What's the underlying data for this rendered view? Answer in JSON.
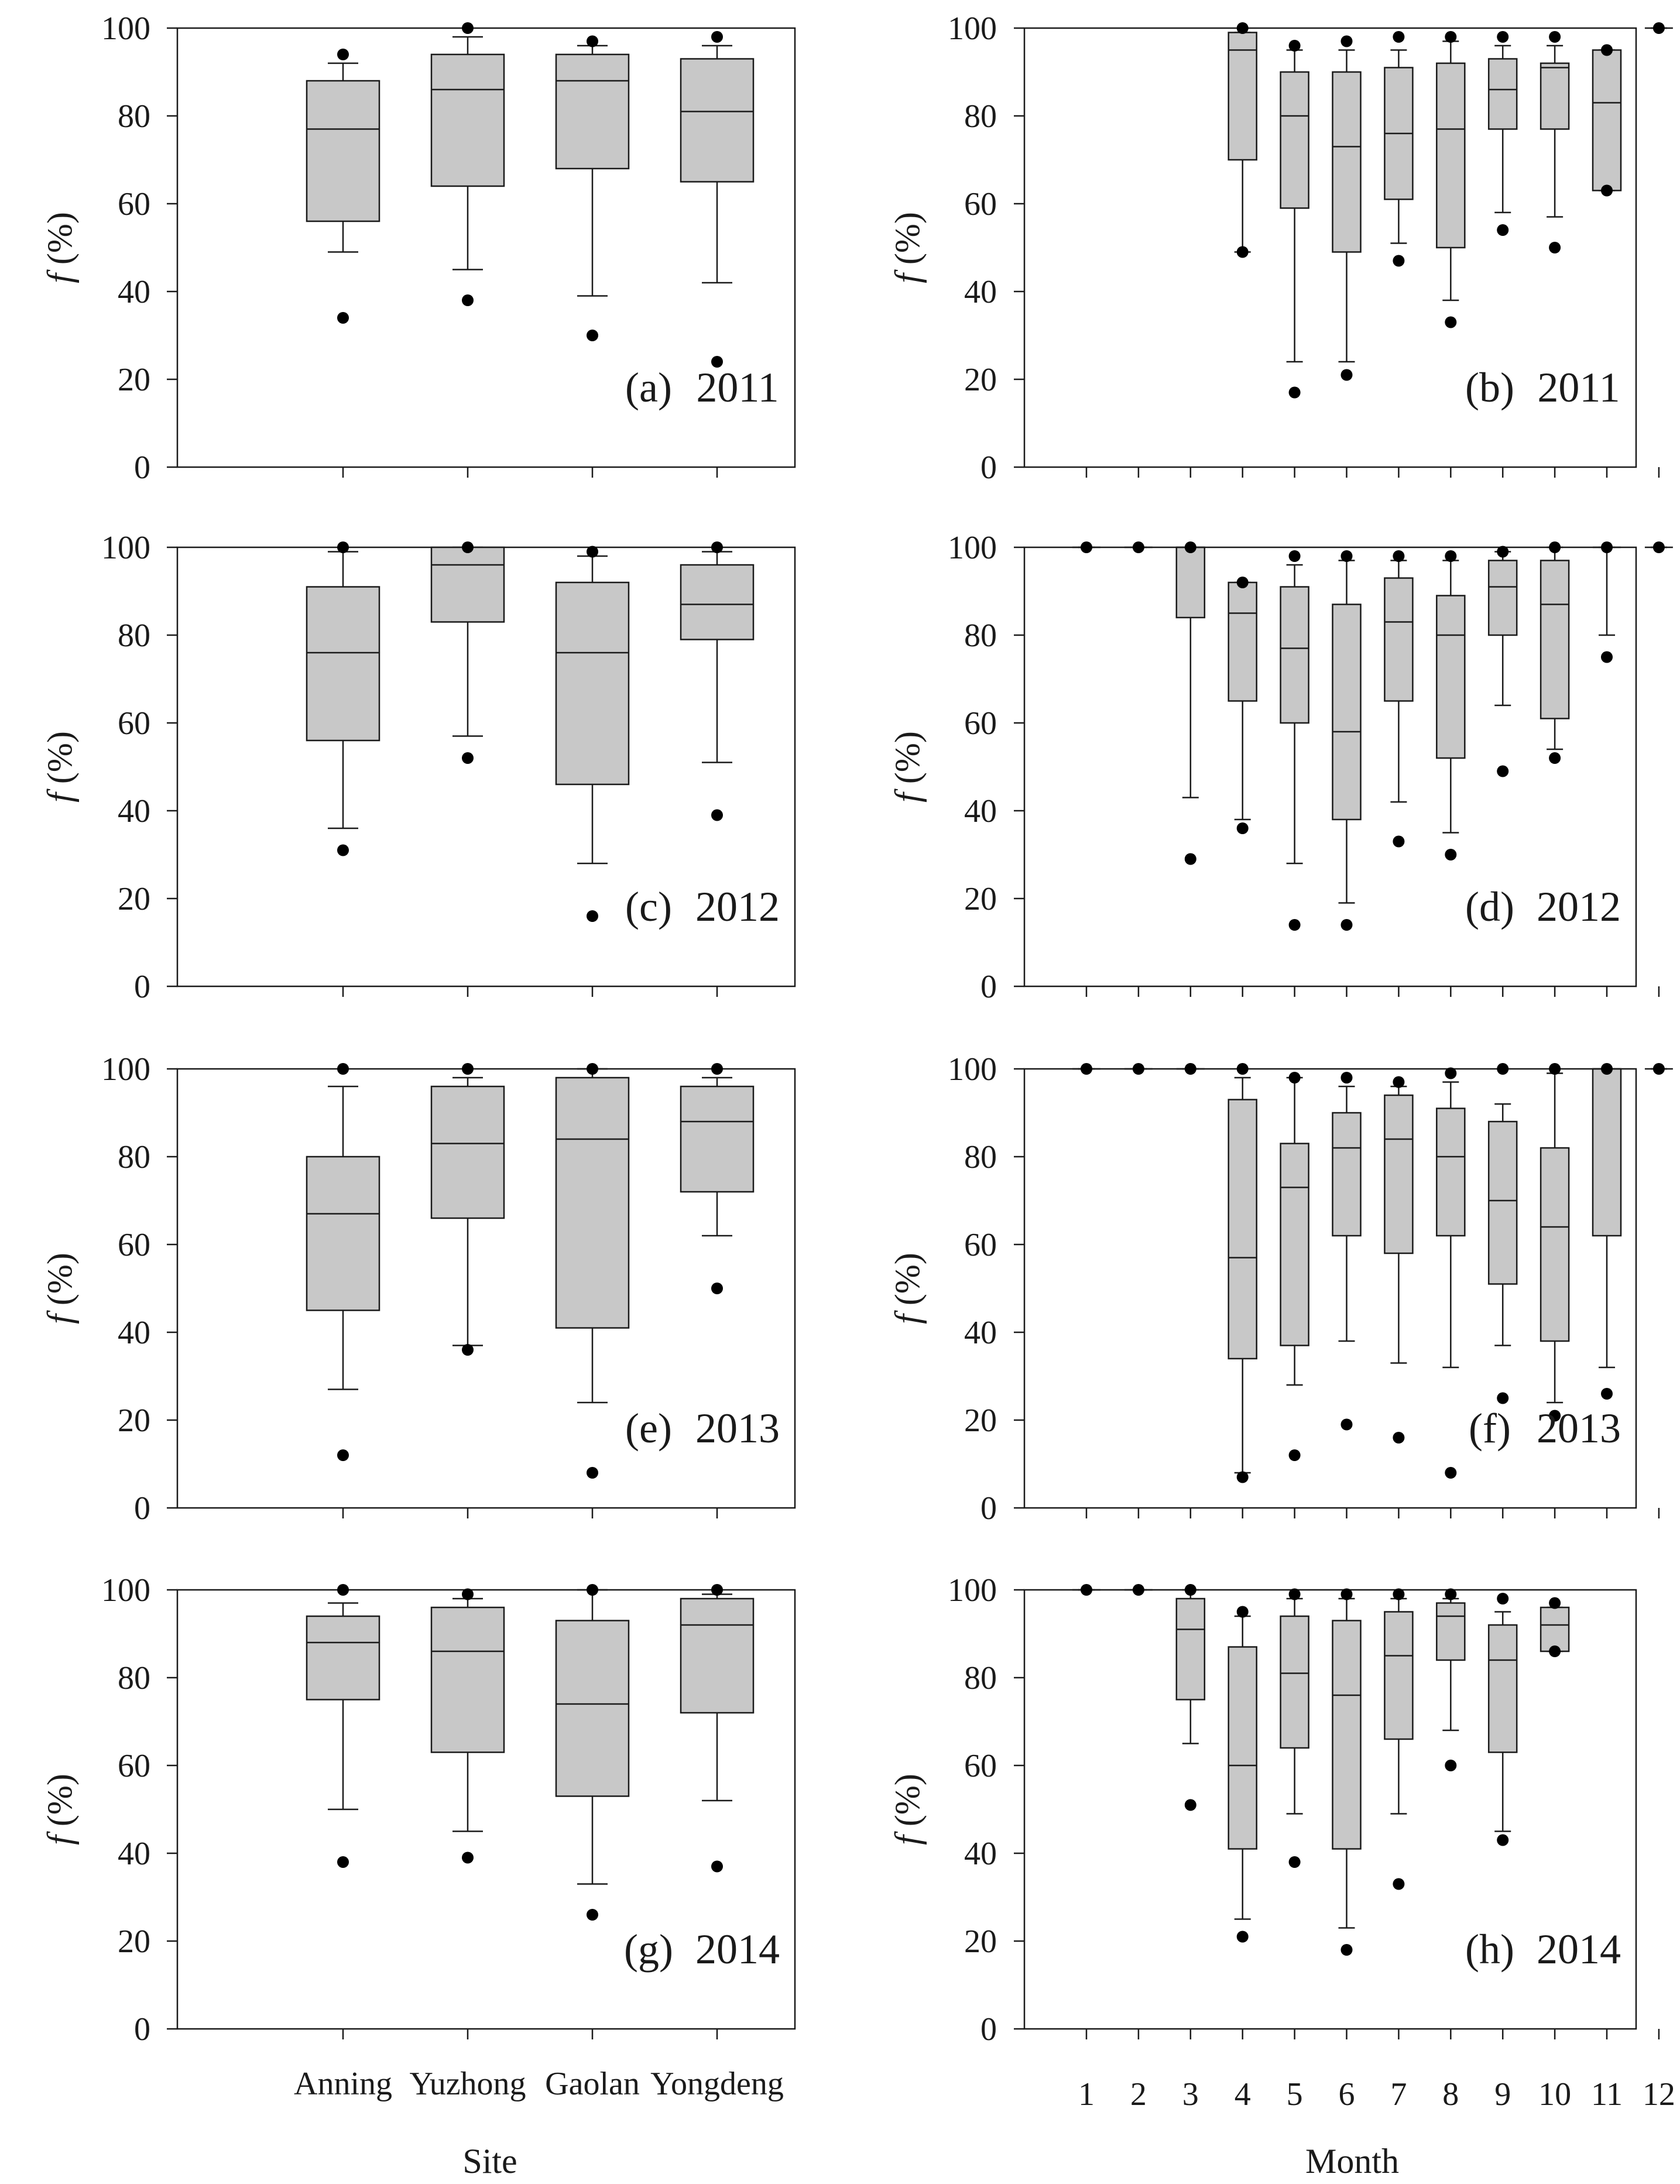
{
  "figure": {
    "ylabel_symbol": "f",
    "ylabel_unit": "(%)",
    "left_xlabel": "Site",
    "right_xlabel": "Month",
    "site_names": [
      "Anning",
      "Yuzhong",
      "Gaolan",
      "Yongdeng"
    ],
    "month_names": [
      "1",
      "2",
      "3",
      "4",
      "5",
      "6",
      "7",
      "8",
      "9",
      "10",
      "11",
      "12"
    ],
    "y_ticks": [
      "0",
      "20",
      "40",
      "60",
      "80",
      "100"
    ],
    "box_color": "#c8c8c8",
    "line_color": "#1a1a1a"
  },
  "chart_data": [
    {
      "type": "box",
      "panel_label": "(a)",
      "year": "2011",
      "ylim": [
        0,
        100
      ],
      "series": [
        {
          "category": "Anning",
          "whisker_low": 49,
          "q1": 56,
          "median": 77,
          "q3": 88,
          "whisker_high": 92,
          "outliers": [
            34,
            94
          ]
        },
        {
          "category": "Yuzhong",
          "whisker_low": 45,
          "q1": 64,
          "median": 86,
          "q3": 94,
          "whisker_high": 98,
          "outliers": [
            38,
            100
          ]
        },
        {
          "category": "Gaolan",
          "whisker_low": 39,
          "q1": 68,
          "median": 88,
          "q3": 94,
          "whisker_high": 96,
          "outliers": [
            30,
            97
          ]
        },
        {
          "category": "Yongdeng",
          "whisker_low": 42,
          "q1": 65,
          "median": 81,
          "q3": 93,
          "whisker_high": 96,
          "outliers": [
            24,
            98
          ]
        }
      ]
    },
    {
      "type": "box",
      "panel_label": "(b)",
      "year": "2011",
      "ylim": [
        0,
        100
      ],
      "series": [
        {
          "category": "4",
          "whisker_low": 49,
          "q1": 70,
          "median": 95,
          "q3": 99,
          "whisker_high": 99,
          "outliers": [
            49,
            100
          ]
        },
        {
          "category": "5",
          "whisker_low": 24,
          "q1": 59,
          "median": 80,
          "q3": 90,
          "whisker_high": 95,
          "outliers": [
            17,
            96
          ]
        },
        {
          "category": "6",
          "whisker_low": 24,
          "q1": 49,
          "median": 73,
          "q3": 90,
          "whisker_high": 95,
          "outliers": [
            21,
            97
          ]
        },
        {
          "category": "7",
          "whisker_low": 51,
          "q1": 61,
          "median": 76,
          "q3": 91,
          "whisker_high": 95,
          "outliers": [
            47,
            98
          ]
        },
        {
          "category": "8",
          "whisker_low": 38,
          "q1": 50,
          "median": 77,
          "q3": 92,
          "whisker_high": 97,
          "outliers": [
            33,
            98
          ]
        },
        {
          "category": "9",
          "whisker_low": 58,
          "q1": 77,
          "median": 86,
          "q3": 93,
          "whisker_high": 96,
          "outliers": [
            54,
            98
          ]
        },
        {
          "category": "10",
          "whisker_low": 57,
          "q1": 77,
          "median": 91,
          "q3": 92,
          "whisker_high": 96,
          "outliers": [
            50,
            98
          ]
        },
        {
          "category": "11",
          "whisker_low": 63,
          "q1": 63,
          "median": 83,
          "q3": 95,
          "whisker_high": 95,
          "outliers": [
            63,
            95
          ]
        },
        {
          "category": "12",
          "whisker_low": 100,
          "q1": 100,
          "median": 100,
          "q3": 100,
          "whisker_high": 100,
          "outliers": [
            100
          ]
        }
      ]
    },
    {
      "type": "box",
      "panel_label": "(c)",
      "year": "2012",
      "ylim": [
        0,
        100
      ],
      "series": [
        {
          "category": "Anning",
          "whisker_low": 36,
          "q1": 56,
          "median": 76,
          "q3": 91,
          "whisker_high": 99,
          "outliers": [
            31,
            100
          ]
        },
        {
          "category": "Yuzhong",
          "whisker_low": 57,
          "q1": 83,
          "median": 96,
          "q3": 100,
          "whisker_high": 100,
          "outliers": [
            52,
            100
          ]
        },
        {
          "category": "Gaolan",
          "whisker_low": 28,
          "q1": 46,
          "median": 76,
          "q3": 92,
          "whisker_high": 98,
          "outliers": [
            16,
            99
          ]
        },
        {
          "category": "Yongdeng",
          "whisker_low": 51,
          "q1": 79,
          "median": 87,
          "q3": 96,
          "whisker_high": 99,
          "outliers": [
            39,
            100
          ]
        }
      ]
    },
    {
      "type": "box",
      "panel_label": "(d)",
      "year": "2012",
      "ylim": [
        0,
        100
      ],
      "series": [
        {
          "category": "1",
          "whisker_low": 100,
          "q1": 100,
          "median": 100,
          "q3": 100,
          "whisker_high": 100,
          "outliers": [
            100
          ]
        },
        {
          "category": "2",
          "whisker_low": 100,
          "q1": 100,
          "median": 100,
          "q3": 100,
          "whisker_high": 100,
          "outliers": [
            100
          ]
        },
        {
          "category": "3",
          "whisker_low": 43,
          "q1": 84,
          "median": 100,
          "q3": 100,
          "whisker_high": 100,
          "outliers": [
            29,
            100
          ]
        },
        {
          "category": "4",
          "whisker_low": 38,
          "q1": 65,
          "median": 85,
          "q3": 92,
          "whisker_high": 92,
          "outliers": [
            36,
            92
          ]
        },
        {
          "category": "5",
          "whisker_low": 28,
          "q1": 60,
          "median": 77,
          "q3": 91,
          "whisker_high": 96,
          "outliers": [
            14,
            98
          ]
        },
        {
          "category": "6",
          "whisker_low": 19,
          "q1": 38,
          "median": 58,
          "q3": 87,
          "whisker_high": 97,
          "outliers": [
            14,
            98
          ]
        },
        {
          "category": "7",
          "whisker_low": 42,
          "q1": 65,
          "median": 83,
          "q3": 93,
          "whisker_high": 97,
          "outliers": [
            33,
            98
          ]
        },
        {
          "category": "8",
          "whisker_low": 35,
          "q1": 52,
          "median": 80,
          "q3": 89,
          "whisker_high": 97,
          "outliers": [
            30,
            98
          ]
        },
        {
          "category": "9",
          "whisker_low": 64,
          "q1": 80,
          "median": 91,
          "q3": 97,
          "whisker_high": 99,
          "outliers": [
            49,
            99
          ]
        },
        {
          "category": "10",
          "whisker_low": 54,
          "q1": 61,
          "median": 87,
          "q3": 97,
          "whisker_high": 100,
          "outliers": [
            52,
            100
          ]
        },
        {
          "category": "11",
          "whisker_low": 80,
          "q1": 100,
          "median": 100,
          "q3": 100,
          "whisker_high": 100,
          "outliers": [
            75,
            100
          ]
        },
        {
          "category": "12",
          "whisker_low": 100,
          "q1": 100,
          "median": 100,
          "q3": 100,
          "whisker_high": 100,
          "outliers": [
            100
          ]
        }
      ]
    },
    {
      "type": "box",
      "panel_label": "(e)",
      "year": "2013",
      "ylim": [
        0,
        100
      ],
      "series": [
        {
          "category": "Anning",
          "whisker_low": 27,
          "q1": 45,
          "median": 67,
          "q3": 80,
          "whisker_high": 96,
          "outliers": [
            12,
            100
          ]
        },
        {
          "category": "Yuzhong",
          "whisker_low": 37,
          "q1": 66,
          "median": 83,
          "q3": 96,
          "whisker_high": 98,
          "outliers": [
            36,
            100
          ]
        },
        {
          "category": "Gaolan",
          "whisker_low": 24,
          "q1": 41,
          "median": 84,
          "q3": 98,
          "whisker_high": 100,
          "outliers": [
            8,
            100
          ]
        },
        {
          "category": "Yongdeng",
          "whisker_low": 62,
          "q1": 72,
          "median": 88,
          "q3": 96,
          "whisker_high": 98,
          "outliers": [
            50,
            100
          ]
        }
      ]
    },
    {
      "type": "box",
      "panel_label": "(f)",
      "year": "2013",
      "ylim": [
        0,
        100
      ],
      "series": [
        {
          "category": "1",
          "whisker_low": 100,
          "q1": 100,
          "median": 100,
          "q3": 100,
          "whisker_high": 100,
          "outliers": [
            100
          ]
        },
        {
          "category": "2",
          "whisker_low": 100,
          "q1": 100,
          "median": 100,
          "q3": 100,
          "whisker_high": 100,
          "outliers": [
            100
          ]
        },
        {
          "category": "3",
          "whisker_low": 100,
          "q1": 100,
          "median": 100,
          "q3": 100,
          "whisker_high": 100,
          "outliers": [
            100
          ]
        },
        {
          "category": "4",
          "whisker_low": 8,
          "q1": 34,
          "median": 57,
          "q3": 93,
          "whisker_high": 98,
          "outliers": [
            7,
            100
          ]
        },
        {
          "category": "5",
          "whisker_low": 28,
          "q1": 37,
          "median": 73,
          "q3": 83,
          "whisker_high": 98,
          "outliers": [
            12,
            98
          ]
        },
        {
          "category": "6",
          "whisker_low": 38,
          "q1": 62,
          "median": 82,
          "q3": 90,
          "whisker_high": 96,
          "outliers": [
            19,
            98
          ]
        },
        {
          "category": "7",
          "whisker_low": 33,
          "q1": 58,
          "median": 84,
          "q3": 94,
          "whisker_high": 96,
          "outliers": [
            16,
            97
          ]
        },
        {
          "category": "8",
          "whisker_low": 32,
          "q1": 62,
          "median": 80,
          "q3": 91,
          "whisker_high": 97,
          "outliers": [
            8,
            99
          ]
        },
        {
          "category": "9",
          "whisker_low": 37,
          "q1": 51,
          "median": 70,
          "q3": 88,
          "whisker_high": 92,
          "outliers": [
            25,
            100
          ]
        },
        {
          "category": "10",
          "whisker_low": 24,
          "q1": 38,
          "median": 64,
          "q3": 82,
          "whisker_high": 99,
          "outliers": [
            21,
            100
          ]
        },
        {
          "category": "11",
          "whisker_low": 32,
          "q1": 62,
          "median": 100,
          "q3": 100,
          "whisker_high": 100,
          "outliers": [
            26,
            100
          ]
        },
        {
          "category": "12",
          "whisker_low": 100,
          "q1": 100,
          "median": 100,
          "q3": 100,
          "whisker_high": 100,
          "outliers": [
            100
          ]
        }
      ]
    },
    {
      "type": "box",
      "panel_label": "(g)",
      "year": "2014",
      "ylim": [
        0,
        100
      ],
      "series": [
        {
          "category": "Anning",
          "whisker_low": 50,
          "q1": 75,
          "median": 88,
          "q3": 94,
          "whisker_high": 97,
          "outliers": [
            38,
            100
          ]
        },
        {
          "category": "Yuzhong",
          "whisker_low": 45,
          "q1": 63,
          "median": 86,
          "q3": 96,
          "whisker_high": 98,
          "outliers": [
            39,
            99
          ]
        },
        {
          "category": "Gaolan",
          "whisker_low": 33,
          "q1": 53,
          "median": 74,
          "q3": 93,
          "whisker_high": 100,
          "outliers": [
            26,
            100
          ]
        },
        {
          "category": "Yongdeng",
          "whisker_low": 52,
          "q1": 72,
          "median": 92,
          "q3": 98,
          "whisker_high": 99,
          "outliers": [
            37,
            100
          ]
        }
      ]
    },
    {
      "type": "box",
      "panel_label": "(h)",
      "year": "2014",
      "ylim": [
        0,
        100
      ],
      "series": [
        {
          "category": "1",
          "whisker_low": 100,
          "q1": 100,
          "median": 100,
          "q3": 100,
          "whisker_high": 100,
          "outliers": [
            100
          ]
        },
        {
          "category": "2",
          "whisker_low": 100,
          "q1": 100,
          "median": 100,
          "q3": 100,
          "whisker_high": 100,
          "outliers": [
            100
          ]
        },
        {
          "category": "3",
          "whisker_low": 65,
          "q1": 75,
          "median": 91,
          "q3": 98,
          "whisker_high": 100,
          "outliers": [
            51,
            100
          ]
        },
        {
          "category": "4",
          "whisker_low": 25,
          "q1": 41,
          "median": 60,
          "q3": 87,
          "whisker_high": 94,
          "outliers": [
            21,
            95
          ]
        },
        {
          "category": "5",
          "whisker_low": 49,
          "q1": 64,
          "median": 81,
          "q3": 94,
          "whisker_high": 98,
          "outliers": [
            38,
            99
          ]
        },
        {
          "category": "6",
          "whisker_low": 23,
          "q1": 41,
          "median": 76,
          "q3": 93,
          "whisker_high": 98,
          "outliers": [
            18,
            99
          ]
        },
        {
          "category": "7",
          "whisker_low": 49,
          "q1": 66,
          "median": 85,
          "q3": 95,
          "whisker_high": 98,
          "outliers": [
            33,
            99
          ]
        },
        {
          "category": "8",
          "whisker_low": 68,
          "q1": 84,
          "median": 94,
          "q3": 97,
          "whisker_high": 98,
          "outliers": [
            60,
            99
          ]
        },
        {
          "category": "9",
          "whisker_low": 45,
          "q1": 63,
          "median": 84,
          "q3": 92,
          "whisker_high": 95,
          "outliers": [
            43,
            98
          ]
        },
        {
          "category": "10",
          "whisker_low": 86,
          "q1": 86,
          "median": 92,
          "q3": 96,
          "whisker_high": 96,
          "outliers": [
            86,
            97
          ]
        }
      ]
    }
  ]
}
